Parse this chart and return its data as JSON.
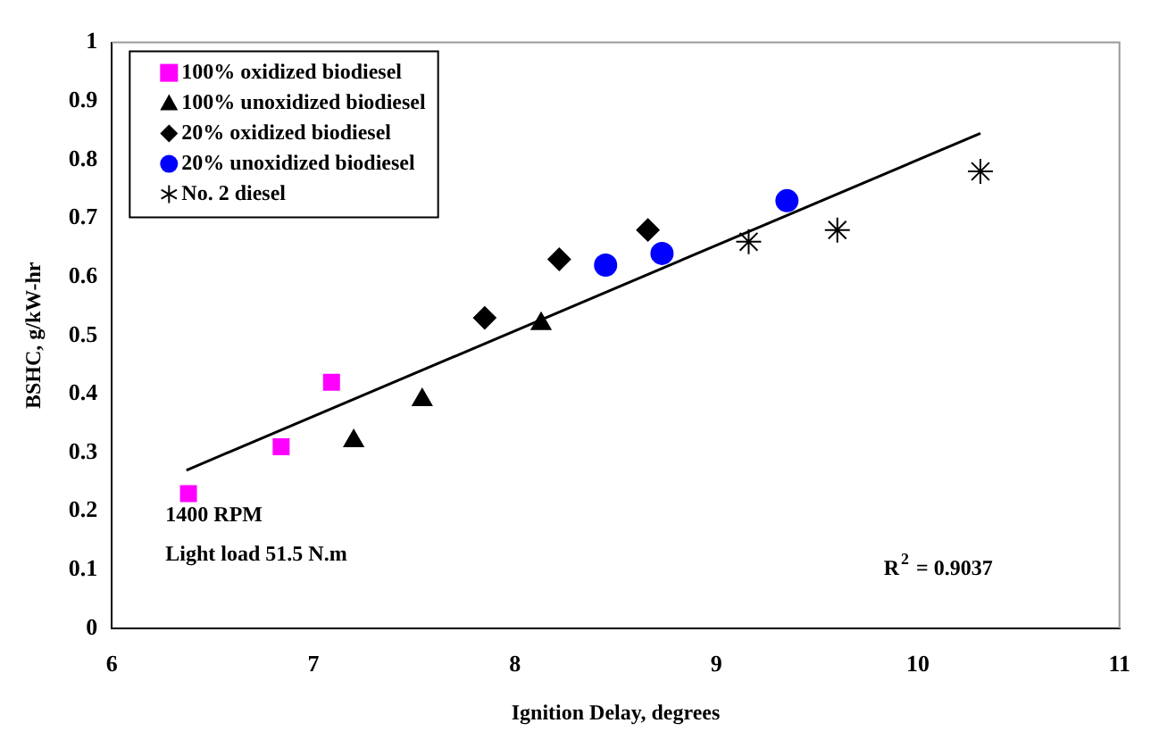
{
  "chart_data": {
    "type": "scatter",
    "xlabel": "Ignition Delay, degrees",
    "ylabel": "BSHC, g/kW-hr",
    "xlim": [
      6,
      11
    ],
    "xticks": [
      6,
      7,
      8,
      9,
      10,
      11
    ],
    "ylim": [
      0,
      1
    ],
    "yticks": [
      0,
      0.1,
      0.2,
      0.3,
      0.4,
      0.5,
      0.6,
      0.7,
      0.8,
      0.9,
      1
    ],
    "grid": false,
    "legend": "top left",
    "series": [
      {
        "name": "100% oxidized biodiesel",
        "color": "#ff00ff",
        "marker": "square",
        "x": [
          6.38,
          6.84,
          7.09
        ],
        "values": [
          0.23,
          0.31,
          0.42
        ]
      },
      {
        "name": "100% unoxidized biodiesel",
        "color": "#000000",
        "marker": "triangle",
        "x": [
          7.2,
          7.54,
          8.13
        ],
        "values": [
          0.32,
          0.39,
          0.52
        ]
      },
      {
        "name": "20% oxidized biodiesel",
        "color": "#000000",
        "marker": "diamond",
        "x": [
          7.85,
          8.22,
          8.66
        ],
        "values": [
          0.53,
          0.63,
          0.68
        ]
      },
      {
        "name": "20% unoxidized biodiesel",
        "color": "#0000ff",
        "marker": "circle",
        "x": [
          8.45,
          8.73,
          9.35
        ],
        "values": [
          0.62,
          0.64,
          0.73
        ]
      },
      {
        "name": "No. 2 diesel",
        "color": "#000000",
        "marker": "cross",
        "x": [
          9.16,
          9.6,
          10.31
        ],
        "values": [
          0.66,
          0.68,
          0.78
        ]
      },
      {
        "type": "line",
        "color": "#000000",
        "marker": "none",
        "x": [
          6.37,
          10.31
        ],
        "values": [
          0.27,
          0.845
        ]
      }
    ],
    "annotations": [
      "1400 RPM",
      "Light load 51.5 N.m",
      "R$^{2}$ = 0.9037"
    ]
  }
}
